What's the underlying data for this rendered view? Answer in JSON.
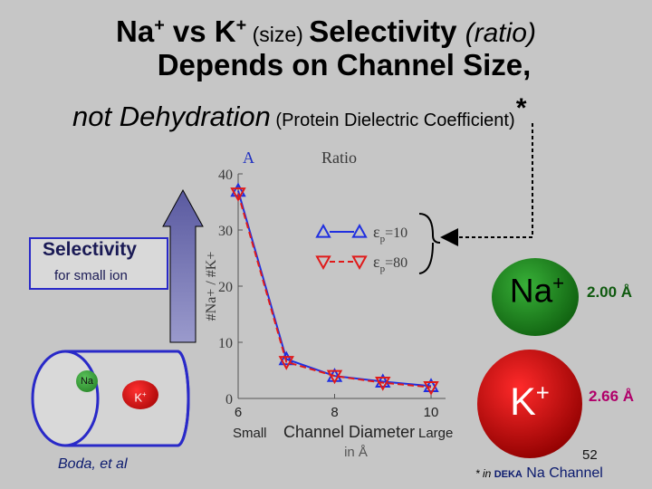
{
  "title": {
    "line1_main": "Na",
    "line1_plus": "+",
    "line1_vs": " vs K",
    "line1_plus2": "+",
    "line1_size": " (size) ",
    "line1_selectivity": "Selectivity ",
    "line1_ratio": "(ratio)",
    "line2": "Depends on Channel Size,",
    "line3_main": "not Dehydration",
    "line3_paren": " (Protein Dielectric Coefficient)",
    "line3_star": "*"
  },
  "selectivity_box": {
    "title": "Selectivity",
    "subtitle": "for small ion"
  },
  "channel_ions": {
    "na": "Na",
    "k": "K",
    "k_plus": "+"
  },
  "credit": "Boda, et al",
  "ions": {
    "na_label": "Na",
    "na_plus": "+",
    "na_size": "2.00 Å",
    "k_label": "K",
    "k_plus": "+",
    "k_size": "2.66 Å"
  },
  "slide_number": "52",
  "footer": {
    "star": "*",
    "in": " in ",
    "deka": "DEKA",
    "rest": " Na Channel"
  },
  "colors": {
    "title_text": "#000000",
    "series_eps10": "#1f2fe0",
    "series_eps80": "#e01a1a",
    "arrow_fill": "#6666aa",
    "na_green": "#2a9a2a",
    "k_red": "#d00000"
  },
  "chart_data": {
    "type": "line",
    "panel_label": "A",
    "title": "Ratio",
    "ylabel": "#Na+ / #K+",
    "xlabel_small": "Small",
    "xlabel_main": "Channel Diameter",
    "xlabel_large": "Large",
    "xlabel_unit": "in Å",
    "xlim": [
      6,
      10.3
    ],
    "ylim": [
      0,
      40
    ],
    "x_ticks": [
      6,
      8,
      10
    ],
    "y_ticks": [
      0,
      10,
      20,
      30,
      40
    ],
    "series": [
      {
        "name": "εp=10",
        "legend_main": "ε",
        "legend_sub": "p",
        "legend_val": "=10",
        "marker": "triangle-up",
        "line": "solid",
        "x": [
          6,
          7,
          8,
          9,
          10
        ],
        "y": [
          37,
          7,
          4,
          3,
          2.2
        ]
      },
      {
        "name": "εp=80",
        "legend_main": "ε",
        "legend_sub": "p",
        "legend_val": "=80",
        "marker": "triangle-down",
        "line": "dashed",
        "x": [
          6,
          7,
          8,
          9,
          10
        ],
        "y": [
          36.5,
          6.5,
          4,
          2.8,
          2
        ]
      }
    ]
  }
}
